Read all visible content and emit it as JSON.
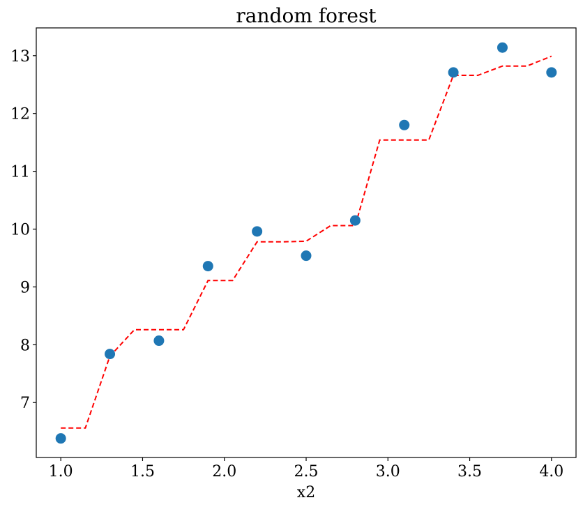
{
  "chart_data": {
    "type": "scatter",
    "title": "random forest",
    "xlabel": "x2",
    "ylabel": "",
    "xlim": [
      0.85,
      4.15
    ],
    "ylim": [
      6.05,
      13.48
    ],
    "xticks": [
      1.0,
      1.5,
      2.0,
      2.5,
      3.0,
      3.5,
      4.0
    ],
    "xtick_labels": [
      "1.0",
      "1.5",
      "2.0",
      "2.5",
      "3.0",
      "3.5",
      "4.0"
    ],
    "yticks": [
      7,
      8,
      9,
      10,
      11,
      12,
      13
    ],
    "ytick_labels": [
      "7",
      "8",
      "9",
      "10",
      "11",
      "12",
      "13"
    ],
    "grid": false,
    "series": [
      {
        "kind": "scatter",
        "color": "#1f77b4",
        "x": [
          1.0,
          1.3,
          1.6,
          1.9,
          2.2,
          2.5,
          2.8,
          3.1,
          3.4,
          3.7,
          4.0
        ],
        "y": [
          6.38,
          7.84,
          8.07,
          9.36,
          9.96,
          9.54,
          10.15,
          11.8,
          12.71,
          13.14,
          12.71
        ]
      },
      {
        "kind": "line",
        "color": "#ff0000",
        "style": "dashed",
        "x": [
          1.0,
          1.15,
          1.3,
          1.45,
          1.6,
          1.75,
          1.9,
          2.05,
          2.2,
          2.35,
          2.5,
          2.65,
          2.8,
          2.95,
          3.1,
          3.25,
          3.4,
          3.55,
          3.7,
          3.85,
          4.0
        ],
        "y": [
          6.56,
          6.56,
          7.8,
          8.26,
          8.26,
          8.26,
          9.11,
          9.11,
          9.78,
          9.78,
          9.79,
          10.06,
          10.06,
          11.54,
          11.54,
          11.54,
          12.66,
          12.66,
          12.82,
          12.82,
          12.99
        ]
      }
    ]
  }
}
